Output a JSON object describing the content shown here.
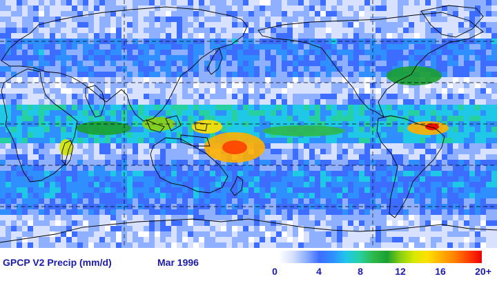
{
  "map": {
    "projection": "equirectangular",
    "center_longitude": 180,
    "variable": "precipitation",
    "units": "mm/d"
  },
  "footer": {
    "title": "GPCP V2 Precip (mm/d)",
    "date": "Mar 1996"
  },
  "colorbar": {
    "ticks": [
      "0",
      "4",
      "8",
      "12",
      "16",
      "20+"
    ],
    "range": [
      0,
      20
    ],
    "colors": [
      "#ffffff",
      "#d8e2ff",
      "#8fb0ff",
      "#3d6dff",
      "#2f8fff",
      "#20c8e8",
      "#26d0a0",
      "#2fb84a",
      "#1aa030",
      "#8bd010",
      "#d8e800",
      "#ffe000",
      "#ffb000",
      "#ff8000",
      "#ff4000",
      "#ee0000"
    ]
  },
  "chart_data": {
    "type": "heatmap",
    "title": "GPCP V2 Precip (mm/d)",
    "subtitle": "Mar 1996",
    "xlabel": "",
    "ylabel": "",
    "colorbar_ticks": [
      0,
      4,
      8,
      12,
      16,
      20
    ],
    "grid": true
  }
}
